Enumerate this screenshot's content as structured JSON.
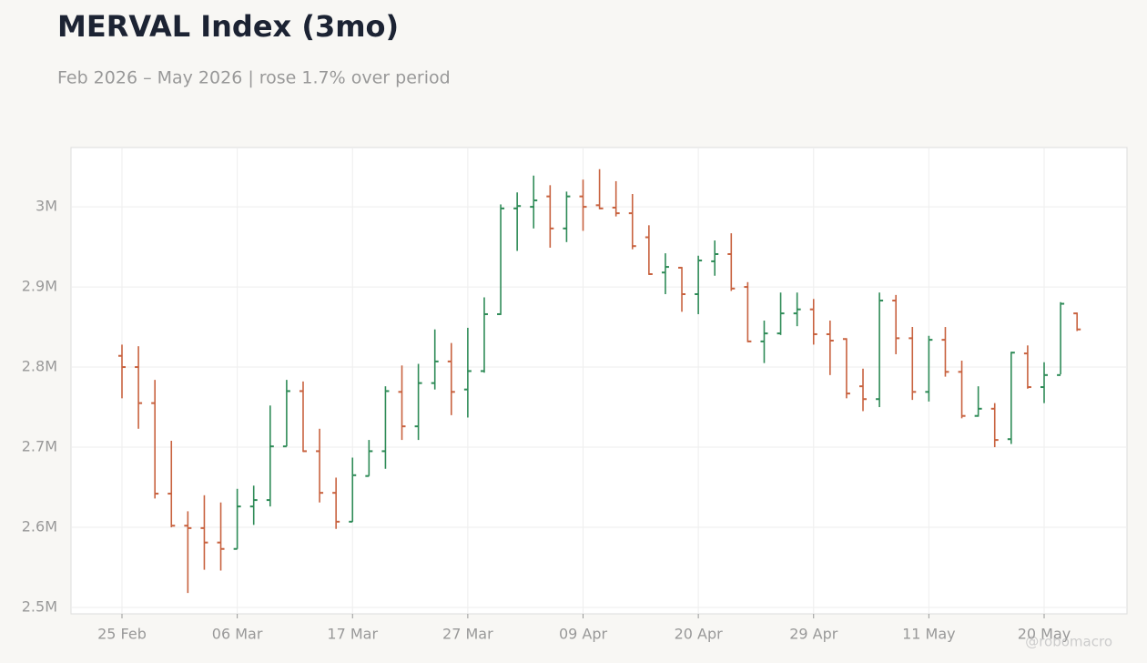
{
  "chart_data": {
    "type": "ohlc",
    "title": "MERVAL Index (3mo)",
    "subtitle": "Feb 2026 – May 2026 | rose 1.7% over period",
    "credit": "@robomacro",
    "categories": [
      "25 Feb",
      null,
      null,
      null,
      null,
      null,
      null,
      "06 Mar",
      null,
      null,
      null,
      null,
      null,
      null,
      "17 Mar",
      null,
      null,
      null,
      null,
      null,
      null,
      "27 Mar",
      null,
      null,
      null,
      null,
      null,
      null,
      "09 Apr",
      null,
      null,
      null,
      null,
      null,
      null,
      "20 Apr",
      null,
      null,
      null,
      null,
      null,
      null,
      "29 Apr",
      null,
      null,
      null,
      null,
      null,
      null,
      "11 May",
      null,
      null,
      null,
      null,
      null,
      null,
      "20 May",
      null,
      null
    ],
    "open": [
      2814000,
      2800000,
      2755000,
      2642000,
      2602000,
      2599000,
      2581000,
      2573000,
      2626000,
      2634000,
      2701000,
      2770000,
      2695000,
      2643000,
      2607000,
      2664000,
      2695000,
      2769000,
      2726000,
      2780000,
      2807000,
      2772000,
      2795000,
      2866000,
      2998000,
      3000000,
      3013000,
      2973000,
      3013000,
      3002000,
      2999000,
      2992000,
      2962000,
      2918000,
      2924000,
      2891000,
      2932000,
      2941000,
      2900000,
      2832000,
      2842000,
      2867000,
      2872000,
      2841000,
      2835000,
      2776000,
      2760000,
      2883000,
      2836000,
      2769000,
      2834000,
      2794000,
      2739000,
      2748000,
      2710000,
      2817000,
      2775000,
      2790000,
      2867000
    ],
    "high": [
      2828000,
      2826000,
      2784000,
      2708000,
      2620000,
      2640000,
      2631000,
      2648000,
      2652000,
      2752000,
      2784000,
      2782000,
      2723000,
      2662000,
      2687000,
      2709000,
      2776000,
      2802000,
      2804000,
      2847000,
      2830000,
      2849000,
      2887000,
      3003000,
      3018000,
      3039000,
      3027000,
      3019000,
      3034000,
      3047000,
      3032000,
      3016000,
      2977000,
      2942000,
      2925000,
      2939000,
      2958000,
      2967000,
      2906000,
      2858000,
      2893000,
      2893000,
      2885000,
      2858000,
      2836000,
      2798000,
      2893000,
      2890000,
      2850000,
      2839000,
      2850000,
      2808000,
      2776000,
      2755000,
      2819000,
      2827000,
      2806000,
      2881000,
      2868000
    ],
    "low": [
      2761000,
      2723000,
      2636000,
      2600000,
      2518000,
      2547000,
      2546000,
      2573000,
      2603000,
      2626000,
      2701000,
      2694000,
      2631000,
      2598000,
      2607000,
      2664000,
      2673000,
      2709000,
      2709000,
      2772000,
      2740000,
      2737000,
      2793000,
      2865000,
      2945000,
      2973000,
      2949000,
      2956000,
      2970000,
      2997000,
      2988000,
      2947000,
      2915000,
      2891000,
      2869000,
      2866000,
      2914000,
      2895000,
      2831000,
      2805000,
      2840000,
      2851000,
      2828000,
      2790000,
      2761000,
      2745000,
      2750000,
      2816000,
      2759000,
      2757000,
      2788000,
      2736000,
      2738000,
      2700000,
      2704000,
      2773000,
      2755000,
      2791000,
      2845000
    ],
    "close": [
      2800000,
      2755000,
      2642000,
      2602000,
      2599000,
      2581000,
      2573000,
      2626000,
      2634000,
      2701000,
      2770000,
      2695000,
      2643000,
      2607000,
      2665000,
      2695000,
      2770000,
      2726000,
      2780000,
      2807000,
      2769000,
      2795000,
      2866000,
      2998000,
      3001000,
      3008000,
      2973000,
      3013000,
      3000000,
      2998000,
      2992000,
      2951000,
      2916000,
      2925000,
      2891000,
      2933000,
      2941000,
      2898000,
      2832000,
      2842000,
      2867000,
      2872000,
      2841000,
      2833000,
      2767000,
      2760000,
      2883000,
      2836000,
      2769000,
      2834000,
      2794000,
      2739000,
      2748000,
      2709000,
      2818000,
      2775000,
      2790000,
      2879000,
      2847000
    ],
    "up_color": "#2e8b57",
    "down_color": "#c8623f",
    "ylim": [
      2492000,
      3074000
    ],
    "yticks": [
      {
        "value": 2500000,
        "label": "2.5M"
      },
      {
        "value": 2600000,
        "label": "2.6M"
      },
      {
        "value": 2700000,
        "label": "2.7M"
      },
      {
        "value": 2800000,
        "label": "2.8M"
      },
      {
        "value": 2900000,
        "label": "2.9M"
      },
      {
        "value": 3000000,
        "label": "3M"
      }
    ],
    "grid": true
  }
}
